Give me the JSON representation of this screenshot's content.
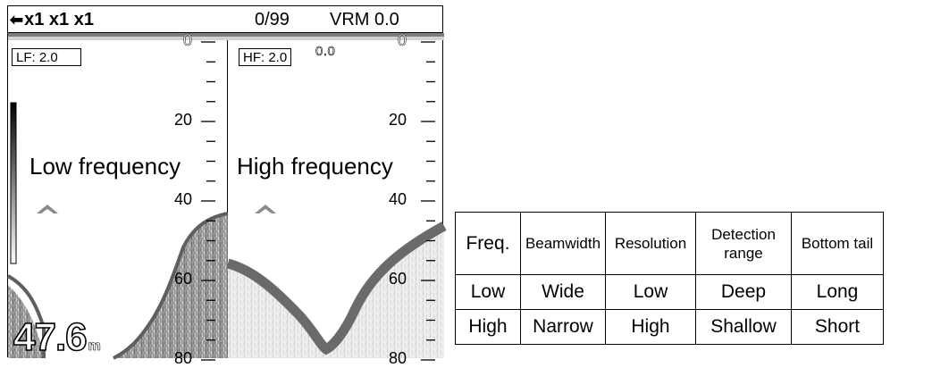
{
  "display": {
    "zoom_arrow": "⬅",
    "zoom_text": "x1 x1 x1",
    "counter": "0/99",
    "vrm": "VRM  0.0",
    "lf_label": "LF: 2.0",
    "hf_label": "HF: 2.0",
    "hf_zero": "0.0",
    "lf_scale": [
      "0",
      "20",
      "40",
      "60",
      "80"
    ],
    "hf_scale": [
      "0",
      "20",
      "40",
      "60",
      "80"
    ],
    "lf_title": "Low frequency",
    "hf_title": "High frequency",
    "depth_value": "47.6",
    "depth_unit": "m"
  },
  "table": {
    "headers": [
      "Freq.",
      "Beamwidth",
      "Resolution",
      "Detection range",
      "Bottom tail"
    ],
    "rows": [
      [
        "Low",
        "Wide",
        "Low",
        "Deep",
        "Long"
      ],
      [
        "High",
        "Narrow",
        "High",
        "Shallow",
        "Short"
      ]
    ]
  }
}
